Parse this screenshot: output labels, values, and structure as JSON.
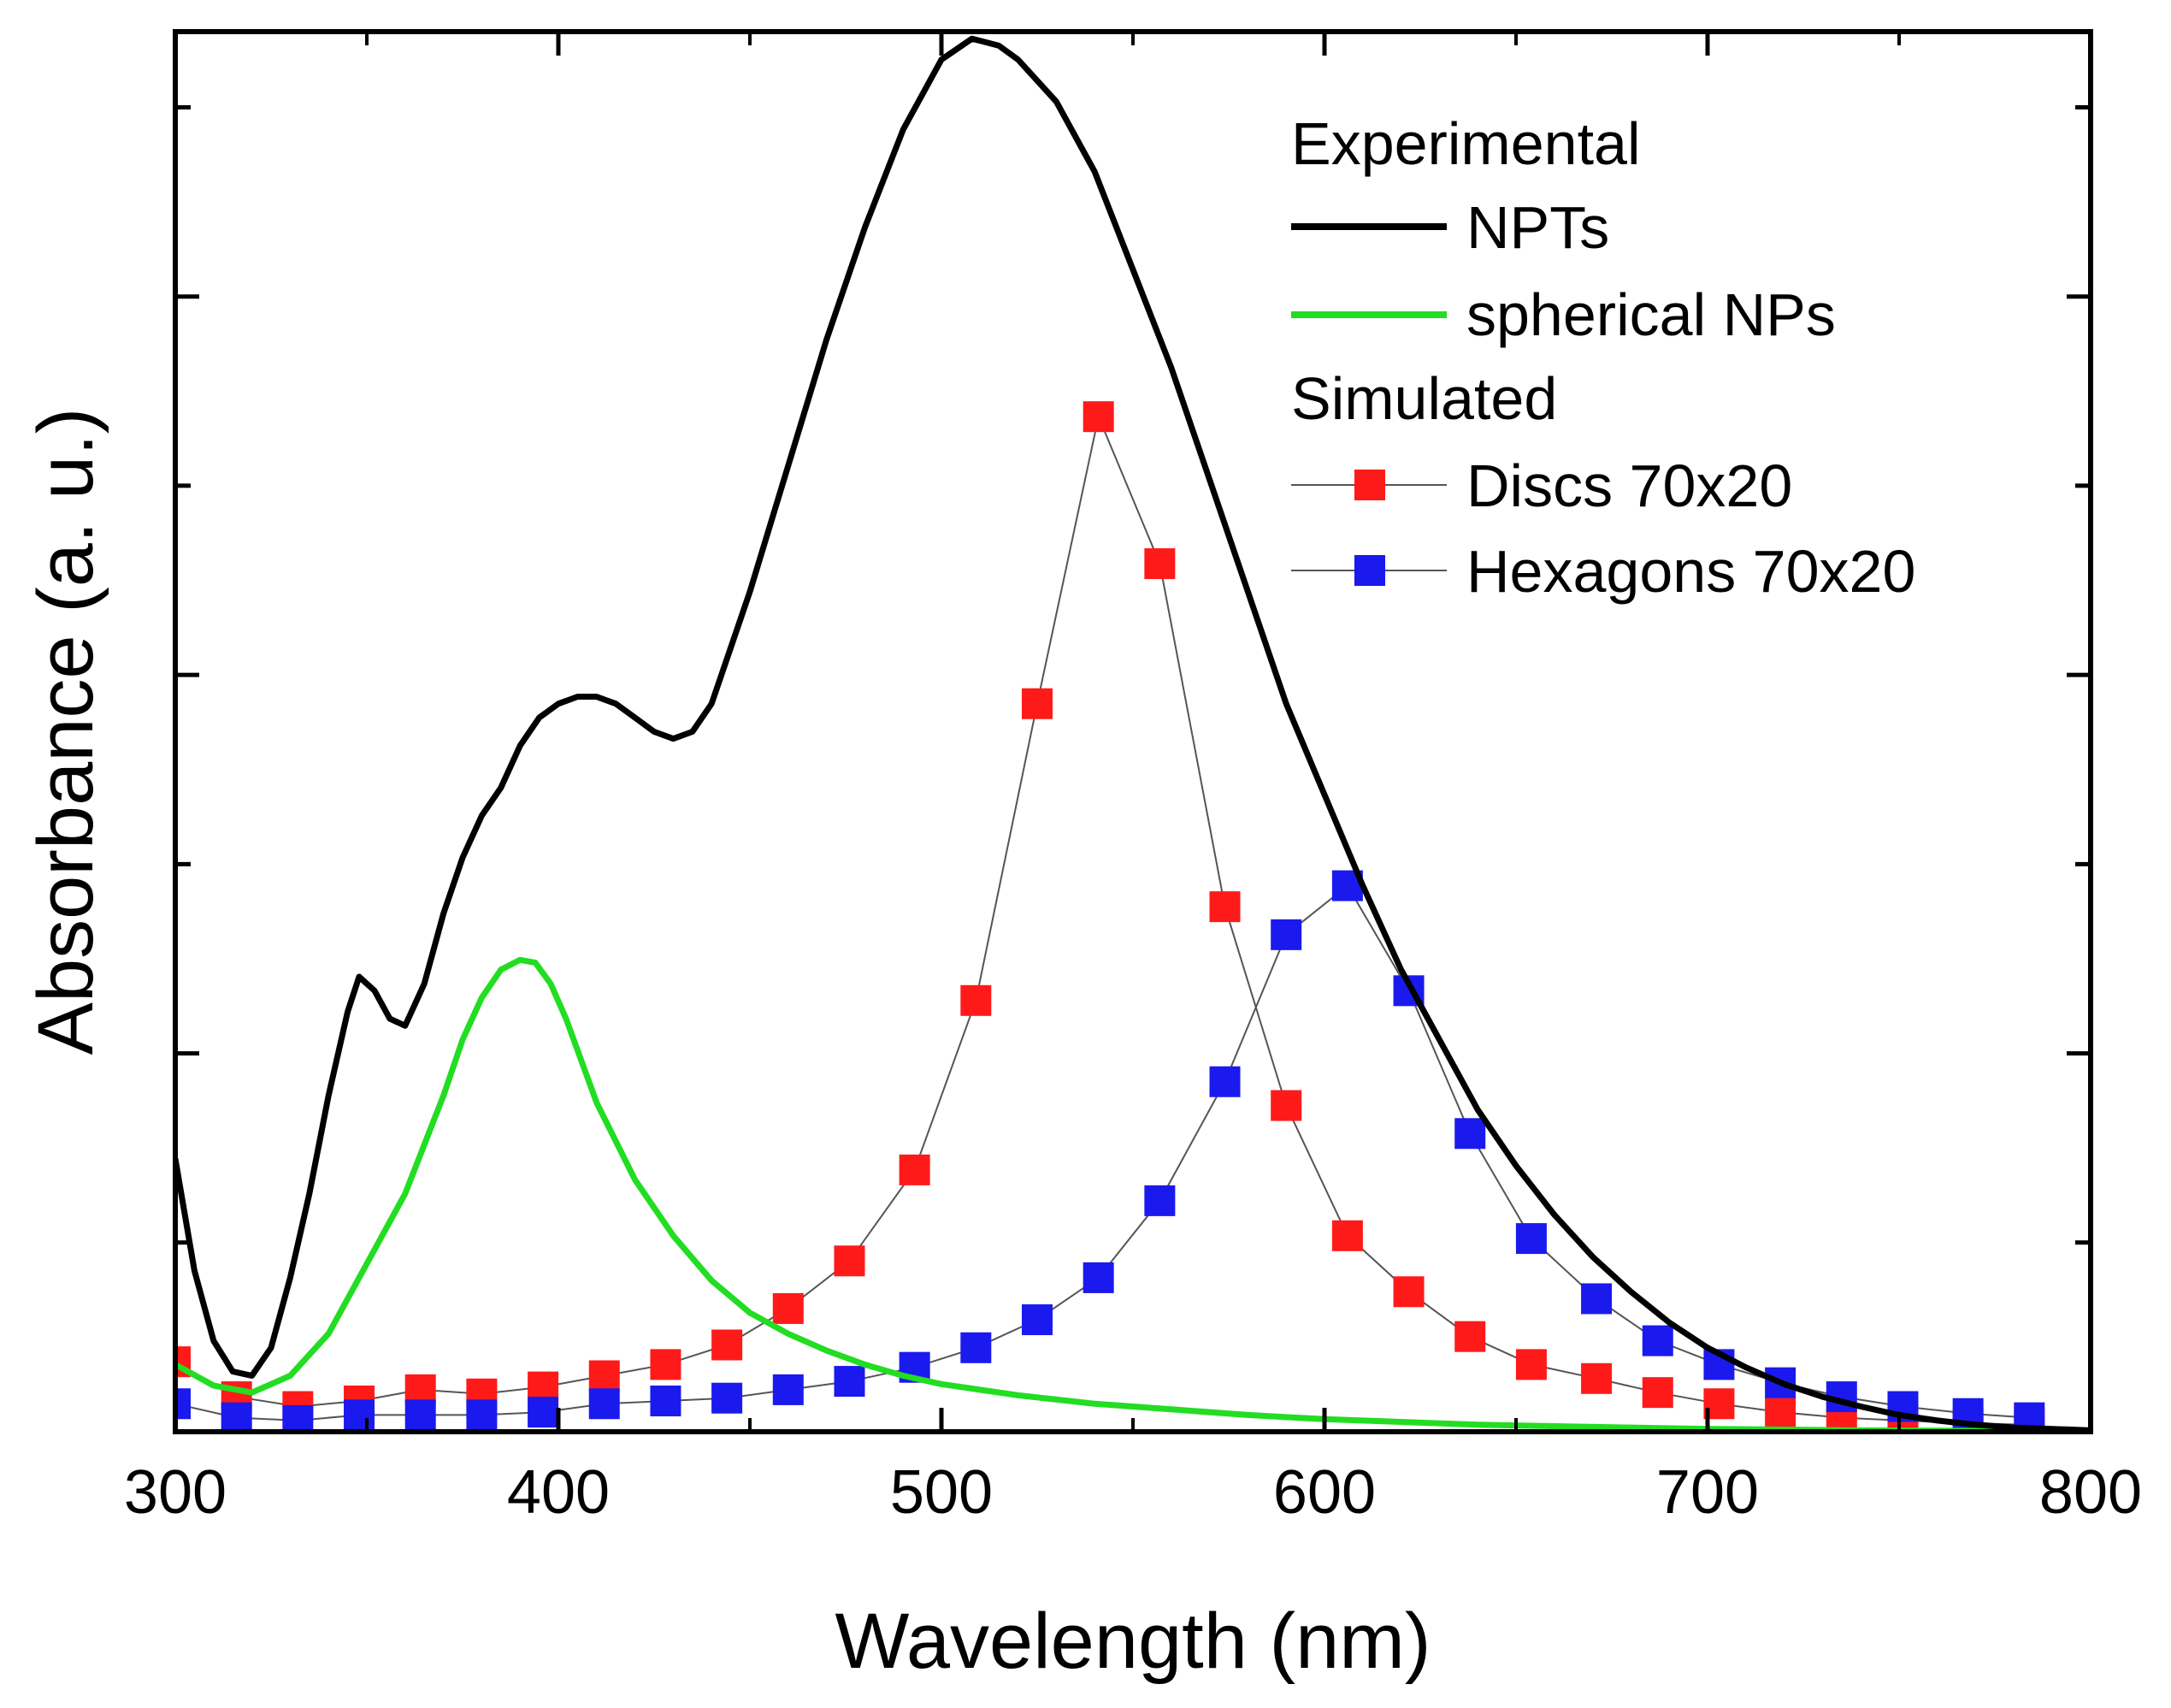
{
  "chart_data": {
    "type": "line",
    "title": "",
    "xlabel": "Wavelength (nm)",
    "ylabel": "Absorbance (a. u.)",
    "xlim": [
      300,
      800
    ],
    "ylim": [
      0,
      1.0
    ],
    "x_ticks": [
      300,
      400,
      500,
      600,
      700,
      800
    ],
    "x_tick_labels": [
      "300",
      "400",
      "500",
      "600",
      "700",
      "800"
    ],
    "y_tick_labels_shown": false,
    "legend_position": "top-right",
    "legend": {
      "experimental_header": "Experimental",
      "simulated_header": "Simulated",
      "entries": [
        "NPTs",
        "spherical NPs",
        "Discs 70x20",
        "Hexagons 70x20"
      ]
    },
    "series": [
      {
        "name": "NPTs",
        "group": "Experimental",
        "style": "line",
        "color": "#000000",
        "x": [
          300,
          305,
          310,
          315,
          320,
          325,
          330,
          335,
          340,
          345,
          348,
          352,
          356,
          360,
          365,
          370,
          375,
          380,
          385,
          390,
          395,
          400,
          405,
          410,
          415,
          420,
          425,
          430,
          435,
          440,
          450,
          460,
          470,
          480,
          490,
          500,
          508,
          515,
          520,
          530,
          540,
          550,
          560,
          570,
          580,
          590,
          600,
          610,
          620,
          630,
          640,
          650,
          660,
          670,
          680,
          690,
          700,
          710,
          720,
          730,
          740,
          750,
          760,
          770,
          780,
          790,
          800
        ],
        "y": [
          0.195,
          0.115,
          0.065,
          0.043,
          0.04,
          0.06,
          0.11,
          0.17,
          0.24,
          0.3,
          0.325,
          0.315,
          0.295,
          0.29,
          0.32,
          0.37,
          0.41,
          0.44,
          0.46,
          0.49,
          0.51,
          0.52,
          0.525,
          0.525,
          0.52,
          0.51,
          0.5,
          0.495,
          0.5,
          0.52,
          0.6,
          0.69,
          0.78,
          0.86,
          0.93,
          0.98,
          0.995,
          0.99,
          0.98,
          0.95,
          0.9,
          0.83,
          0.76,
          0.68,
          0.6,
          0.52,
          0.455,
          0.39,
          0.33,
          0.28,
          0.23,
          0.19,
          0.155,
          0.125,
          0.1,
          0.078,
          0.06,
          0.046,
          0.034,
          0.025,
          0.018,
          0.012,
          0.008,
          0.005,
          0.003,
          0.002,
          0.001
        ]
      },
      {
        "name": "spherical NPs",
        "group": "Experimental",
        "style": "line",
        "color": "#22dd22",
        "x": [
          300,
          310,
          320,
          330,
          340,
          350,
          360,
          370,
          375,
          380,
          385,
          390,
          394,
          398,
          402,
          406,
          410,
          420,
          430,
          440,
          450,
          460,
          470,
          480,
          490,
          500,
          520,
          540,
          560,
          580,
          600,
          620,
          640,
          660,
          680,
          700,
          720,
          740,
          760,
          780,
          800
        ],
        "y": [
          0.048,
          0.033,
          0.028,
          0.04,
          0.07,
          0.12,
          0.17,
          0.24,
          0.28,
          0.31,
          0.33,
          0.337,
          0.335,
          0.32,
          0.295,
          0.265,
          0.235,
          0.18,
          0.14,
          0.108,
          0.085,
          0.07,
          0.058,
          0.048,
          0.04,
          0.034,
          0.026,
          0.02,
          0.016,
          0.012,
          0.009,
          0.007,
          0.005,
          0.004,
          0.003,
          0.002,
          0.0015,
          0.001,
          0.0008,
          0.0005,
          0.0003
        ]
      },
      {
        "name": "Discs 70x20",
        "group": "Simulated",
        "style": "line+square-markers",
        "color": "#ff1a1a",
        "line_color": "#555555",
        "x": [
          300,
          316,
          332,
          348,
          364,
          380,
          396,
          412,
          428,
          444,
          460,
          476,
          493,
          509,
          525,
          541,
          557,
          574,
          590,
          606,
          622,
          638,
          654,
          671,
          687,
          703,
          719,
          735,
          751,
          768,
          784
        ],
        "y": [
          0.05,
          0.025,
          0.018,
          0.022,
          0.03,
          0.027,
          0.032,
          0.04,
          0.048,
          0.062,
          0.088,
          0.122,
          0.187,
          0.308,
          0.52,
          0.725,
          0.62,
          0.375,
          0.233,
          0.14,
          0.1,
          0.068,
          0.048,
          0.038,
          0.028,
          0.02,
          0.014,
          0.01,
          0.008,
          0.006,
          0.005
        ]
      },
      {
        "name": "Hexagons 70x20",
        "group": "Simulated",
        "style": "line+square-markers",
        "color": "#1a1aee",
        "line_color": "#555555",
        "x": [
          300,
          316,
          332,
          348,
          364,
          380,
          396,
          412,
          428,
          444,
          460,
          476,
          493,
          509,
          525,
          541,
          557,
          574,
          590,
          606,
          622,
          638,
          654,
          671,
          687,
          703,
          719,
          735,
          751,
          768,
          784
        ],
        "y": [
          0.02,
          0.01,
          0.008,
          0.012,
          0.012,
          0.012,
          0.014,
          0.02,
          0.022,
          0.024,
          0.03,
          0.036,
          0.046,
          0.06,
          0.08,
          0.11,
          0.165,
          0.25,
          0.355,
          0.39,
          0.315,
          0.213,
          0.138,
          0.095,
          0.065,
          0.048,
          0.035,
          0.025,
          0.018,
          0.013,
          0.01
        ]
      }
    ]
  }
}
